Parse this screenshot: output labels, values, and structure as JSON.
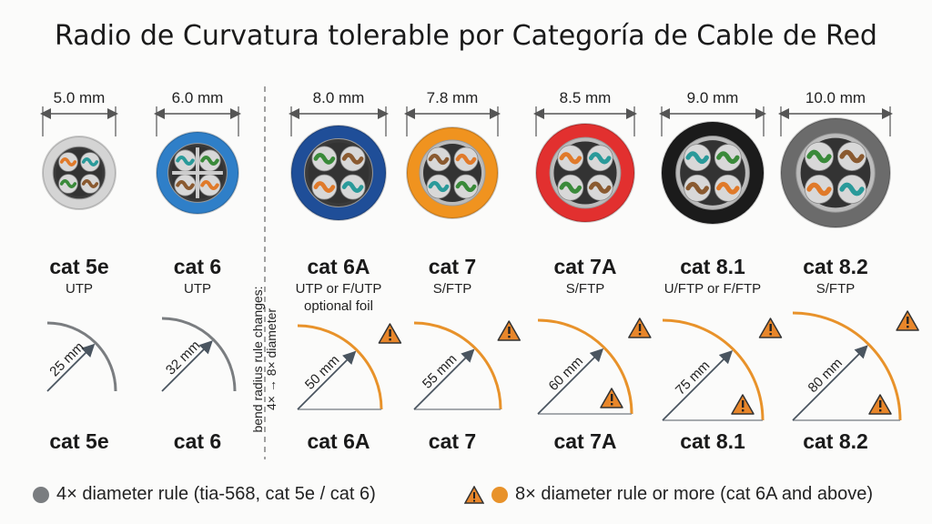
{
  "title": "Radio de Curvatura tolerable por Categoría de Cable de Red",
  "divider_note": [
    "bend radius rule changes:",
    "4× → 8× diameter"
  ],
  "colors": {
    "rule_4x": "#7a7d80",
    "rule_8x": "#e8922a",
    "warning": "#e8862a"
  },
  "cables": [
    {
      "name": "cat 5e",
      "type": [
        "UTP"
      ],
      "diameter": "5.0 mm",
      "radius": "25 mm",
      "rule": "4x",
      "jacket": "#d4d4d4",
      "warning_icons": 0
    },
    {
      "name": "cat 6",
      "type": [
        "UTP"
      ],
      "diameter": "6.0 mm",
      "radius": "32 mm",
      "rule": "4x",
      "jacket": "#2f7fc8",
      "warning_icons": 0
    },
    {
      "name": "cat 6A",
      "type": [
        "UTP or F/UTP",
        "optional foil"
      ],
      "diameter": "8.0 mm",
      "radius": "50 mm",
      "rule": "8x",
      "jacket": "#1f4e98",
      "warning_icons": 1
    },
    {
      "name": "cat 7",
      "type": [
        "S/FTP"
      ],
      "diameter": "7.8 mm",
      "radius": "55 mm",
      "rule": "8x",
      "jacket": "#f0931f",
      "warning_icons": 1
    },
    {
      "name": "cat 7A",
      "type": [
        "S/FTP"
      ],
      "diameter": "8.5 mm",
      "radius": "60 mm",
      "rule": "8x",
      "jacket": "#e2302f",
      "warning_icons": 2
    },
    {
      "name": "cat 8.1",
      "type": [
        "U/FTP or F/FTP"
      ],
      "diameter": "9.0 mm",
      "radius": "75 mm",
      "rule": "8x",
      "jacket": "#1b1b1b",
      "warning_icons": 2
    },
    {
      "name": "cat 8.2",
      "type": [
        "S/FTP"
      ],
      "diameter": "10.0 mm",
      "radius": "80 mm",
      "rule": "8x",
      "jacket": "#6b6b6b",
      "warning_icons": 2
    }
  ],
  "legend": {
    "rule_4x": "4× diameter rule (tia-568, cat 5e / cat 6)",
    "rule_8x": "8× diameter rule or more (cat 6A and above)"
  }
}
